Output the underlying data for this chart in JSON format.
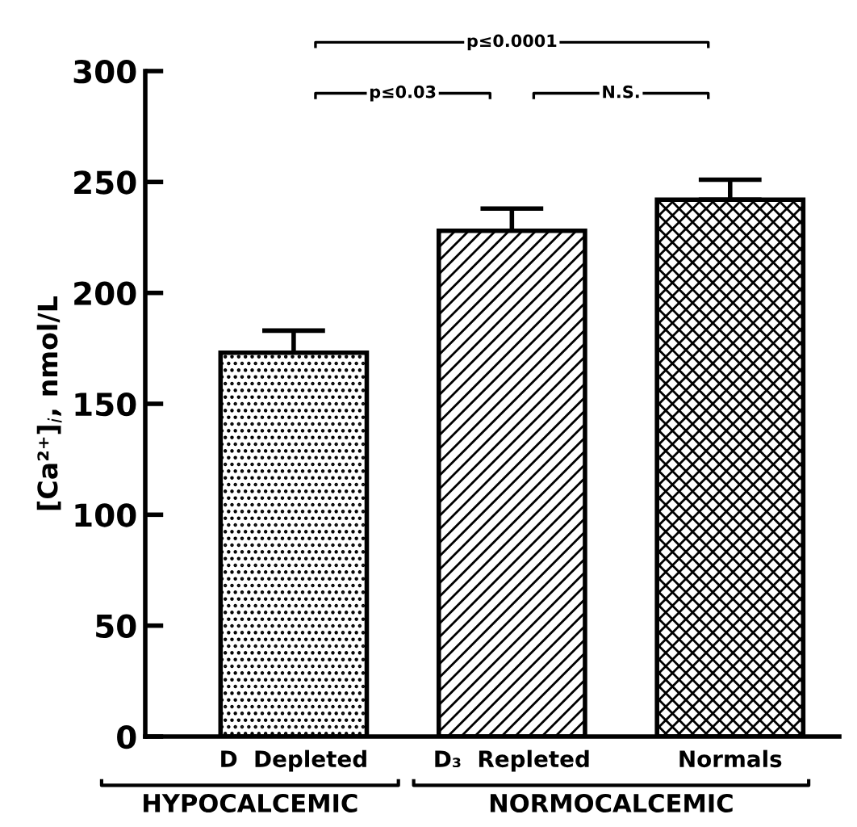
{
  "chart_data": {
    "type": "bar",
    "ylabel": "[Ca²⁺]$_{i}$, nmol/L",
    "categories": [
      "D  Depleted",
      "D₃  Repleted",
      "Normals"
    ],
    "values": [
      173,
      228,
      242
    ],
    "errors": [
      [
        173,
        183
      ],
      [
        228,
        238
      ],
      [
        242,
        251
      ]
    ],
    "colors": [
      "#000000",
      "#000000",
      "#000000"
    ],
    "ylim": [
      0,
      300
    ],
    "yticks": [
      0,
      50,
      100,
      150,
      200,
      250,
      300
    ],
    "grid": false,
    "legend": false,
    "annotations": [
      "p≤0.03",
      "N.S.",
      "p≤0.0001",
      "HYPOCALCEMIC",
      "NORMOCALCEMIC"
    ]
  }
}
